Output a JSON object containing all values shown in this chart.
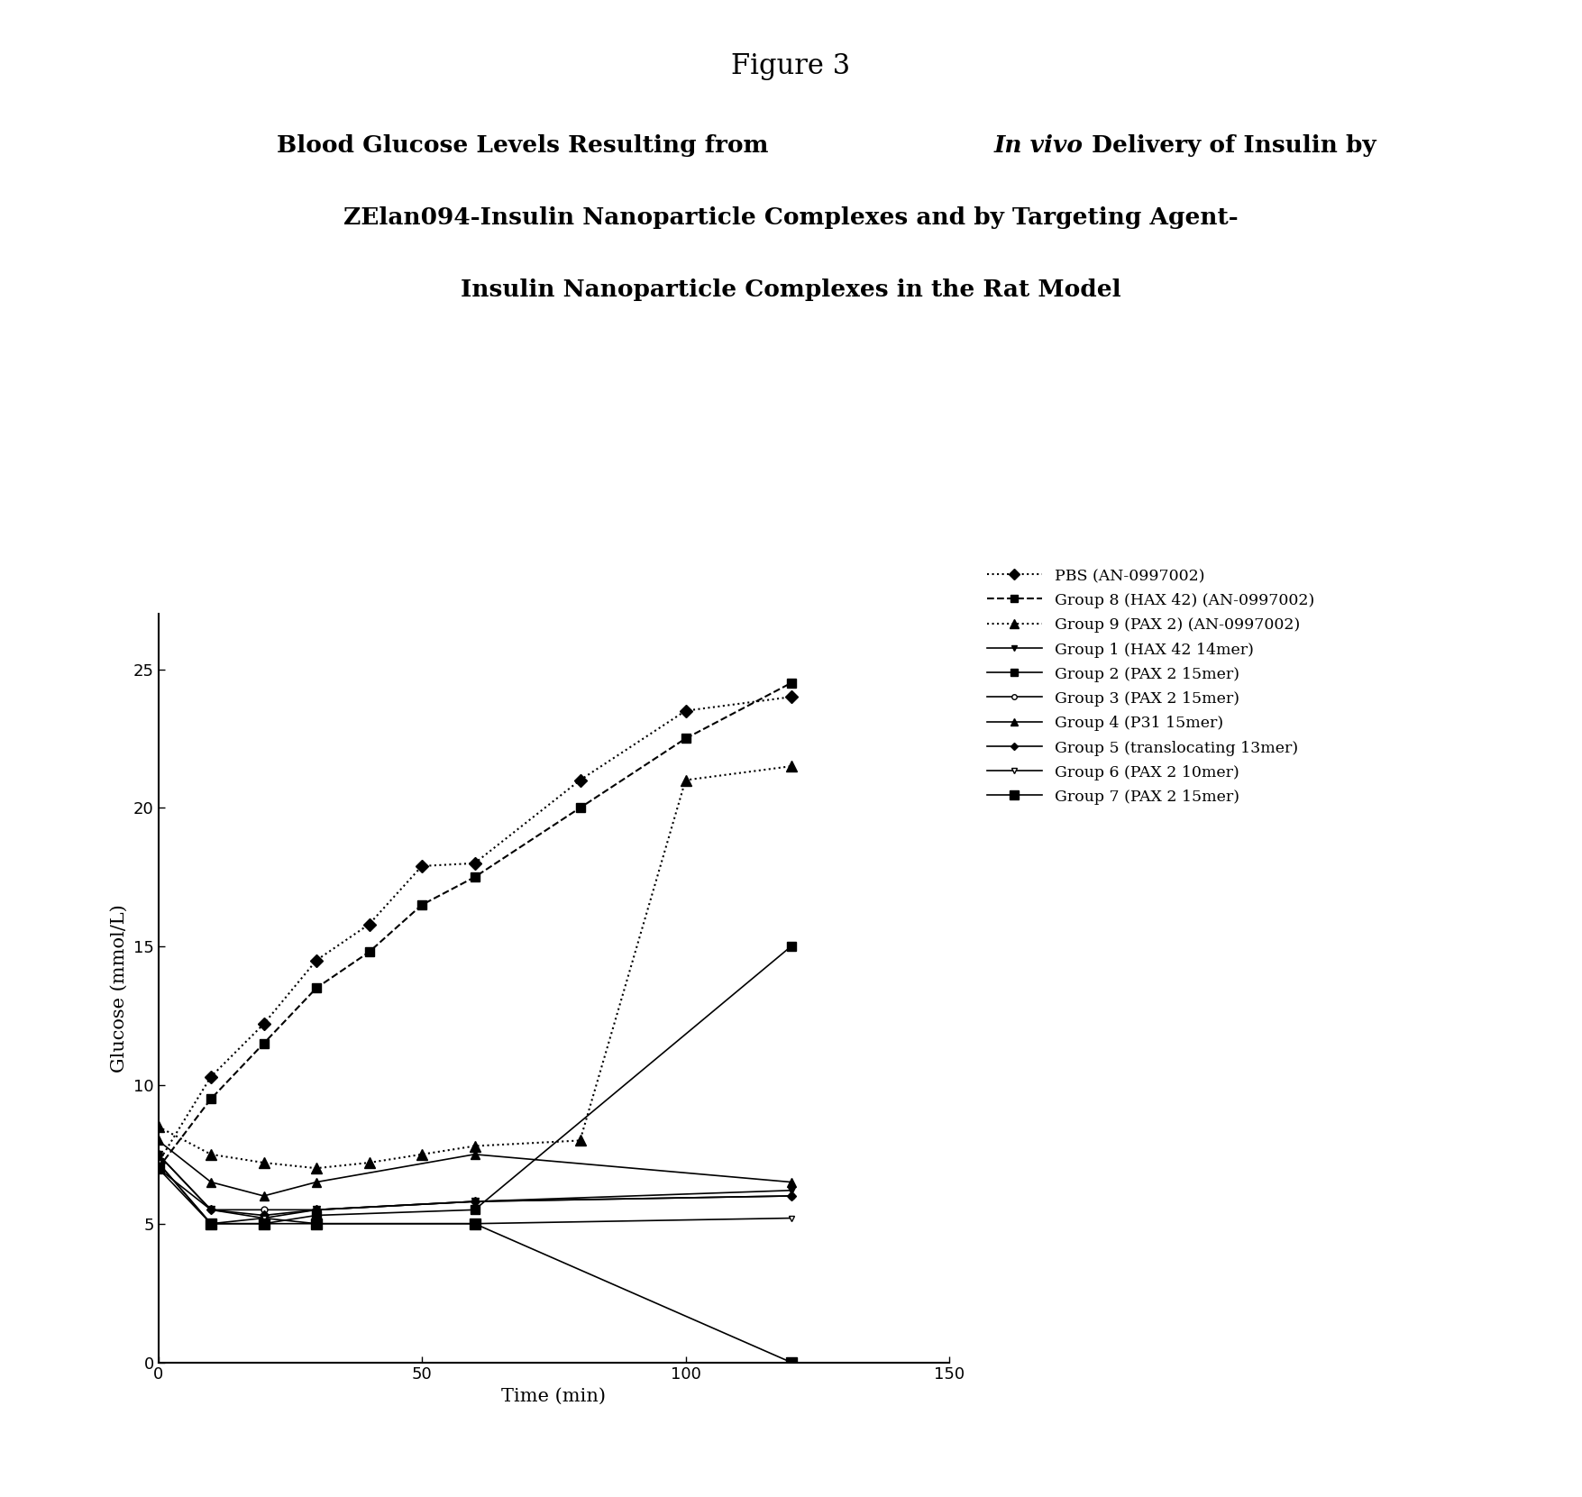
{
  "figure_title": "Figure 3",
  "chart_title_line1_normal": "Blood Glucose Levels Resulting from ",
  "chart_title_line1_italic": "In vivo",
  "chart_title_line1_end": " Delivery of Insulin by",
  "chart_title_line2": "ZElan094-Insulin Nanoparticle Complexes and by Targeting Agent-",
  "chart_title_line3": "Insulin Nanoparticle Complexes in the Rat Model",
  "xlabel": "Time (min)",
  "ylabel": "Glucose (mmol/L)",
  "xlim": [
    0,
    150
  ],
  "ylim": [
    0,
    27
  ],
  "yticks": [
    0,
    5,
    10,
    15,
    20,
    25
  ],
  "xticks": [
    0,
    50,
    100,
    150
  ],
  "series": [
    {
      "label": "PBS (AN-0997002)",
      "x": [
        0,
        10,
        20,
        30,
        40,
        50,
        60,
        80,
        100,
        120
      ],
      "y": [
        7.2,
        10.3,
        12.2,
        14.5,
        15.8,
        17.9,
        18.0,
        21.0,
        23.5,
        24.0
      ],
      "linestyle": "dotted",
      "marker": "D",
      "color": "#000000",
      "linewidth": 1.5,
      "markersize": 7,
      "markerfacecolor": "#000000"
    },
    {
      "label": "Group 8 (HAX 42) (AN-0997002)",
      "x": [
        0,
        10,
        20,
        30,
        40,
        50,
        60,
        80,
        100,
        120
      ],
      "y": [
        7.0,
        9.5,
        11.5,
        13.5,
        14.8,
        16.5,
        17.5,
        20.0,
        22.5,
        24.5
      ],
      "linestyle": "dashed",
      "marker": "s",
      "color": "#000000",
      "linewidth": 1.5,
      "markersize": 7,
      "markerfacecolor": "#000000"
    },
    {
      "label": "Group 9 (PAX 2) (AN-0997002)",
      "x": [
        0,
        10,
        20,
        30,
        40,
        50,
        60,
        80,
        100,
        120
      ],
      "y": [
        8.5,
        7.5,
        7.2,
        7.0,
        7.2,
        7.5,
        7.8,
        8.0,
        21.0,
        21.5
      ],
      "linestyle": "dotted",
      "marker": "^",
      "color": "#000000",
      "linewidth": 1.5,
      "markersize": 8,
      "markerfacecolor": "#000000"
    },
    {
      "label": "Group 1 (HAX 42 14mer)",
      "x": [
        0,
        10,
        20,
        30,
        60,
        120
      ],
      "y": [
        7.5,
        5.5,
        5.2,
        5.5,
        5.8,
        6.2
      ],
      "linestyle": "solid",
      "marker": "v",
      "color": "#000000",
      "linewidth": 1.2,
      "markersize": 6,
      "markerfacecolor": "#000000"
    },
    {
      "label": "Group 2 (PAX 2 15mer)",
      "x": [
        0,
        10,
        20,
        30,
        60,
        120
      ],
      "y": [
        7.2,
        5.0,
        5.0,
        5.3,
        5.5,
        15.0
      ],
      "linestyle": "solid",
      "marker": "s",
      "color": "#000000",
      "linewidth": 1.2,
      "markersize": 7,
      "markerfacecolor": "#000000"
    },
    {
      "label": "Group 3 (PAX 2 15mer)",
      "x": [
        0,
        10,
        20,
        30,
        60,
        120
      ],
      "y": [
        7.0,
        5.5,
        5.5,
        5.5,
        5.8,
        6.0
      ],
      "linestyle": "solid",
      "marker": "o",
      "color": "#000000",
      "linewidth": 1.2,
      "markersize": 5,
      "markerfacecolor": "white"
    },
    {
      "label": "Group 4 (P31 15mer)",
      "x": [
        0,
        10,
        20,
        30,
        60,
        120
      ],
      "y": [
        8.0,
        6.5,
        6.0,
        6.5,
        7.5,
        6.5
      ],
      "linestyle": "solid",
      "marker": "^",
      "color": "#000000",
      "linewidth": 1.2,
      "markersize": 7,
      "markerfacecolor": "#000000"
    },
    {
      "label": "Group 5 (translocating 13mer)",
      "x": [
        0,
        10,
        20,
        30,
        60,
        120
      ],
      "y": [
        7.5,
        5.5,
        5.3,
        5.5,
        5.8,
        6.0
      ],
      "linestyle": "solid",
      "marker": "D",
      "color": "#000000",
      "linewidth": 1.2,
      "markersize": 5,
      "markerfacecolor": "#000000"
    },
    {
      "label": "Group 6 (PAX 2 10mer)",
      "x": [
        0,
        10,
        20,
        30,
        60,
        120
      ],
      "y": [
        7.2,
        5.0,
        5.2,
        5.0,
        5.0,
        5.2
      ],
      "linestyle": "solid",
      "marker": "v",
      "color": "#000000",
      "linewidth": 1.2,
      "markersize": 5,
      "markerfacecolor": "white"
    },
    {
      "label": "Group 7 (PAX 2 15mer)",
      "x": [
        0,
        10,
        20,
        30,
        60,
        120
      ],
      "y": [
        7.0,
        5.0,
        5.0,
        5.0,
        5.0,
        0.0
      ],
      "linestyle": "solid",
      "marker": "s",
      "color": "#000000",
      "linewidth": 1.2,
      "markersize": 8,
      "markerfacecolor": "#000000"
    }
  ]
}
